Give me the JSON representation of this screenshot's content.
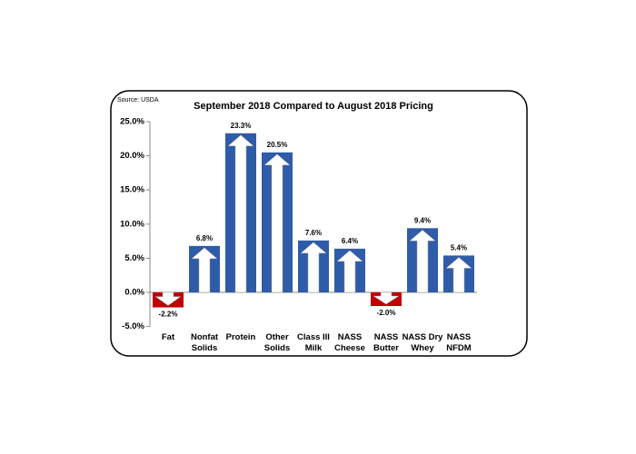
{
  "chart_data": {
    "type": "bar",
    "title": "September 2018 Compared to August 2018 Pricing",
    "source": "Source: USDA",
    "categories": [
      "Fat",
      "Nonfat Solids",
      "Protein",
      "Other Solids",
      "Class III Milk",
      "NASS Cheese",
      "NASS Butter",
      "NASS Dry Whey",
      "NASS NFDM"
    ],
    "values": [
      -2.2,
      6.8,
      23.3,
      20.5,
      7.6,
      6.4,
      -2.0,
      9.4,
      5.4
    ],
    "value_labels": [
      "-2.2%",
      "6.8%",
      "23.3%",
      "20.5%",
      "7.6%",
      "6.4%",
      "-2.0%",
      "9.4%",
      "5.4%"
    ],
    "color": "#2f5ca8",
    "negative_color": "#c00000",
    "ylim": [
      -5,
      25
    ],
    "yticks": [
      {
        "value": -5,
        "label": "-5.0%"
      },
      {
        "value": 0,
        "label": "0.0%"
      },
      {
        "value": 5,
        "label": "5.0%"
      },
      {
        "value": 10,
        "label": "10.0%"
      },
      {
        "value": 15,
        "label": "15.0%"
      },
      {
        "value": 20,
        "label": "20.0%"
      },
      {
        "value": 25,
        "label": "25.0%"
      }
    ]
  }
}
